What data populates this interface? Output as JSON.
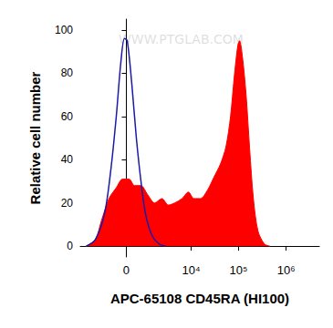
{
  "chart_data": {
    "type": "line",
    "x_label": "APC-65108 CD45RA (HI100)",
    "y_label": "Relative cell number",
    "annotations": [
      "WWW.PTGLAB.COM"
    ],
    "xlim": [
      -4000,
      5000000
    ],
    "xticks": [
      0,
      {
        "value": 10000,
        "label": "10⁴"
      },
      {
        "value": 100000,
        "label": "10⁵"
      },
      {
        "value": 1000000,
        "label": "10⁶"
      }
    ],
    "ylim": [
      -5,
      105
    ],
    "yticks": [
      0,
      20,
      40,
      60,
      80,
      100
    ],
    "grid": false,
    "series": [
      {
        "type": "area",
        "color": "#ff0000",
        "x": [
          -2990,
          -1860,
          -1310,
          -820,
          -440,
          -155,
          116,
          356,
          670,
          1050,
          1610,
          2370,
          3280,
          4510,
          6450,
          8790,
          11500,
          15700,
          22300,
          30500,
          41600,
          54300,
          67800,
          80900,
          96600,
          105000,
          120000,
          144000,
          171000,
          205000,
          256000,
          349000,
          455000
        ],
        "values": [
          0,
          3,
          12,
          22,
          27,
          31,
          31,
          28,
          28,
          24,
          20,
          22,
          19,
          20,
          22,
          25,
          22,
          22,
          26,
          32,
          38,
          46,
          60,
          78,
          93,
          95,
          88,
          70,
          45,
          22,
          7,
          1,
          0
        ]
      },
      {
        "type": "line",
        "color": "#1a1aa6",
        "x": [
          -2990,
          -1860,
          -1100,
          -720,
          -440,
          -234,
          -77,
          38,
          234,
          440,
          670,
          930,
          1380,
          2040,
          2860
        ],
        "values": [
          0,
          3,
          15,
          35,
          60,
          85,
          96,
          95,
          75,
          50,
          30,
          15,
          5,
          1,
          0
        ]
      }
    ]
  }
}
